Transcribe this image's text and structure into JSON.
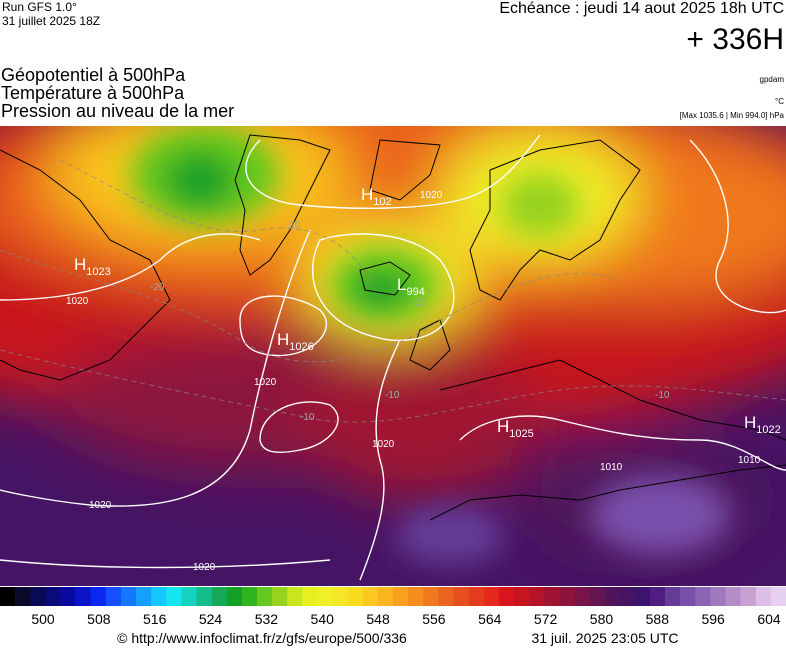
{
  "header": {
    "run": "Run GFS 1.0°",
    "run_date": "31 juillet 2025 18Z",
    "echeance": "Echéance : jeudi 14 aout 2025 18h UTC",
    "horizon": "+ 336H",
    "titles": [
      "Géopotentiel à 500hPa",
      "Température à 500hPa",
      "Pression au niveau de la mer"
    ],
    "units": [
      "gpdam",
      "°C",
      "[Max 1035.6 | Min 994.0] hPa"
    ]
  },
  "map": {
    "centers": [
      {
        "type": "H",
        "value": "1023"
      },
      {
        "type": "H",
        "value": "1026"
      },
      {
        "type": "H",
        "value": "102"
      },
      {
        "type": "L",
        "value": "994"
      },
      {
        "type": "H",
        "value": "1025"
      },
      {
        "type": "H",
        "value": "1022"
      }
    ],
    "isobar_labels": [
      "1020",
      "1020",
      "1020",
      "1020",
      "1020",
      "1020",
      "1010",
      "1010"
    ],
    "temperature_labels": [
      "-20",
      "-20",
      "-20",
      "-10",
      "-10",
      "-10"
    ]
  },
  "legend": {
    "colors": [
      "#000000",
      "#0a0a2a",
      "#0b0b55",
      "#0a0a7a",
      "#0a0aa0",
      "#0a14c8",
      "#0a28f0",
      "#1450ff",
      "#1478ff",
      "#14a0ff",
      "#14c8ff",
      "#14e6f0",
      "#14d2be",
      "#14be8c",
      "#14aa5a",
      "#14a028",
      "#32b41e",
      "#64c81e",
      "#96d21e",
      "#c8e61e",
      "#e6f01e",
      "#f0f028",
      "#f5e628",
      "#fadc1e",
      "#fac81e",
      "#fab41e",
      "#faa01e",
      "#f58c1e",
      "#f0781e",
      "#eb641e",
      "#e6501e",
      "#e63c1e",
      "#e6281e",
      "#dc141e",
      "#c8141e",
      "#b41428",
      "#a01432",
      "#8c143c",
      "#781446",
      "#641450",
      "#50145a",
      "#461464",
      "#3c146e",
      "#501e82",
      "#643c96",
      "#7850aa",
      "#8c64b4",
      "#a078be",
      "#b48cc8",
      "#c8a0d2",
      "#dcbee6",
      "#e6d2f0"
    ],
    "labels": [
      500,
      508,
      516,
      524,
      532,
      540,
      548,
      556,
      564,
      572,
      580,
      588,
      596,
      604
    ]
  },
  "footer": {
    "url": "© http://www.infoclimat.fr/z/gfs/europe/500/336",
    "generated": "31 juil. 2025 23:05 UTC"
  }
}
